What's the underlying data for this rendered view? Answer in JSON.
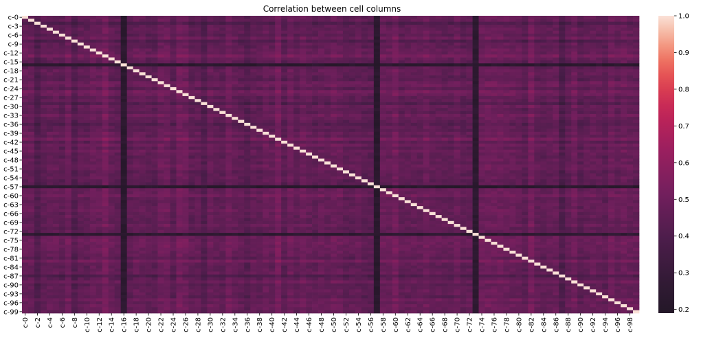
{
  "chart_data": {
    "type": "heatmap",
    "title": "Correlation between cell columns",
    "xlabel": "",
    "ylabel": "",
    "n": 100,
    "label_prefix": "c-",
    "x_tick_labels": [
      "c-0",
      "c-2",
      "c-4",
      "c-6",
      "c-8",
      "c-10",
      "c-12",
      "c-14",
      "c-16",
      "c-18",
      "c-20",
      "c-22",
      "c-24",
      "c-26",
      "c-28",
      "c-30",
      "c-32",
      "c-34",
      "c-36",
      "c-38",
      "c-40",
      "c-42",
      "c-44",
      "c-46",
      "c-48",
      "c-50",
      "c-52",
      "c-54",
      "c-56",
      "c-58",
      "c-60",
      "c-62",
      "c-64",
      "c-66",
      "c-68",
      "c-70",
      "c-72",
      "c-74",
      "c-76",
      "c-78",
      "c-80",
      "c-82",
      "c-84",
      "c-86",
      "c-88",
      "c-90",
      "c-92",
      "c-94",
      "c-96",
      "c-98"
    ],
    "y_tick_labels": [
      "c-0",
      "c-3",
      "c-6",
      "c-9",
      "c-12",
      "c-15",
      "c-18",
      "c-21",
      "c-24",
      "c-27",
      "c-30",
      "c-33",
      "c-36",
      "c-39",
      "c-42",
      "c-45",
      "c-48",
      "c-51",
      "c-54",
      "c-57",
      "c-60",
      "c-63",
      "c-66",
      "c-69",
      "c-72",
      "c-75",
      "c-78",
      "c-81",
      "c-84",
      "c-87",
      "c-90",
      "c-93",
      "c-96",
      "c-99"
    ],
    "x_tick_step": 2,
    "y_tick_step": 3,
    "diagonal_value": 1.0,
    "value_range": [
      0.19,
      1.0
    ],
    "base_off_diagonal_mean": 0.47,
    "low_correlation_columns": [
      {
        "index": 2,
        "level": 0.34
      },
      {
        "index": 8,
        "level": 0.36
      },
      {
        "index": 16,
        "level": 0.22
      },
      {
        "index": 29,
        "level": 0.35
      },
      {
        "index": 36,
        "level": 0.38
      },
      {
        "index": 57,
        "level": 0.21
      },
      {
        "index": 73,
        "level": 0.23
      },
      {
        "index": 87,
        "level": 0.33
      }
    ],
    "high_correlation_columns": [
      {
        "index": 13,
        "level": 0.58
      },
      {
        "index": 25,
        "level": 0.56
      },
      {
        "index": 41,
        "level": 0.58
      },
      {
        "index": 60,
        "level": 0.56
      },
      {
        "index": 82,
        "level": 0.57
      }
    ],
    "colorbar": {
      "colormap": "rocket",
      "ticks": [
        0.2,
        0.3,
        0.4,
        0.5,
        0.6,
        0.7,
        0.8,
        0.9,
        1.0
      ],
      "tick_labels": [
        "0.2",
        "0.3",
        "0.4",
        "0.5",
        "0.6",
        "0.7",
        "0.8",
        "0.9",
        "1.0"
      ],
      "position": "right"
    }
  }
}
